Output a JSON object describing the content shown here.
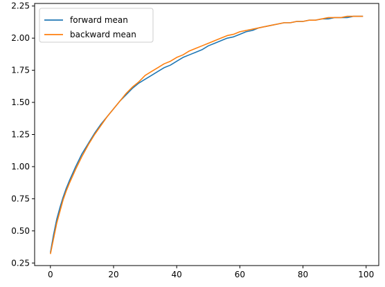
{
  "chart_data": {
    "type": "line",
    "title": "",
    "xlabel": "",
    "ylabel": "",
    "xlim": [
      -5,
      104
    ],
    "ylim": [
      0.23,
      2.27
    ],
    "x_ticks": [
      0,
      20,
      40,
      60,
      80,
      100
    ],
    "y_ticks": [
      0.25,
      0.5,
      0.75,
      1.0,
      1.25,
      1.5,
      1.75,
      2.0,
      2.25
    ],
    "x_tick_labels": [
      "0",
      "20",
      "40",
      "60",
      "80",
      "100"
    ],
    "y_tick_labels": [
      "0.25",
      "0.50",
      "0.75",
      "1.00",
      "1.25",
      "1.50",
      "1.75",
      "2.00",
      "2.25"
    ],
    "grid": false,
    "legend": {
      "position": "top-left"
    },
    "x": [
      0,
      1,
      2,
      3,
      4,
      5,
      6,
      8,
      10,
      12,
      14,
      16,
      18,
      20,
      22,
      24,
      26,
      28,
      30,
      32,
      34,
      36,
      38,
      40,
      42,
      44,
      46,
      48,
      50,
      52,
      54,
      56,
      58,
      60,
      62,
      64,
      66,
      68,
      70,
      72,
      74,
      76,
      78,
      80,
      82,
      84,
      86,
      88,
      90,
      92,
      94,
      96,
      98,
      99
    ],
    "series": [
      {
        "name": "forward mean",
        "color": "#1f77b4",
        "values": [
          0.33,
          0.47,
          0.59,
          0.68,
          0.76,
          0.83,
          0.89,
          1.0,
          1.1,
          1.18,
          1.26,
          1.33,
          1.39,
          1.45,
          1.51,
          1.56,
          1.61,
          1.65,
          1.68,
          1.71,
          1.74,
          1.77,
          1.79,
          1.82,
          1.85,
          1.87,
          1.89,
          1.91,
          1.94,
          1.96,
          1.98,
          2.0,
          2.01,
          2.03,
          2.05,
          2.06,
          2.08,
          2.09,
          2.1,
          2.11,
          2.12,
          2.12,
          2.13,
          2.13,
          2.14,
          2.14,
          2.15,
          2.15,
          2.16,
          2.16,
          2.16,
          2.17,
          2.17,
          2.17
        ]
      },
      {
        "name": "backward mean",
        "color": "#ff7f0e",
        "values": [
          0.32,
          0.44,
          0.56,
          0.65,
          0.74,
          0.81,
          0.87,
          0.98,
          1.08,
          1.17,
          1.25,
          1.32,
          1.39,
          1.45,
          1.51,
          1.57,
          1.62,
          1.66,
          1.71,
          1.74,
          1.77,
          1.8,
          1.82,
          1.85,
          1.87,
          1.9,
          1.92,
          1.94,
          1.96,
          1.98,
          2.0,
          2.02,
          2.03,
          2.05,
          2.06,
          2.07,
          2.08,
          2.09,
          2.1,
          2.11,
          2.12,
          2.12,
          2.13,
          2.13,
          2.14,
          2.14,
          2.15,
          2.16,
          2.16,
          2.16,
          2.17,
          2.17,
          2.17,
          2.17
        ]
      }
    ]
  }
}
